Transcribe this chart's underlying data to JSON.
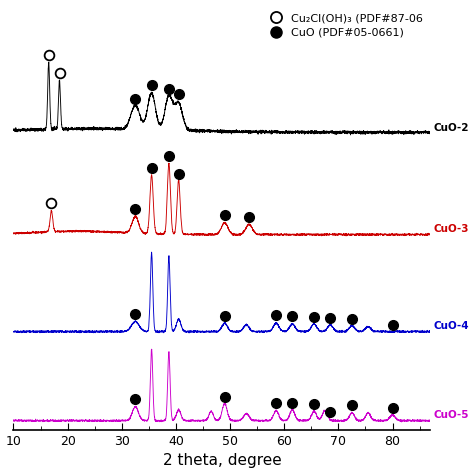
{
  "xlabel": "2 theta, degree",
  "xlim": [
    10,
    87
  ],
  "x_ticks": [
    10,
    20,
    30,
    40,
    50,
    60,
    70,
    80
  ],
  "curve_labels": [
    "CuO-2",
    "CuO-3",
    "CuO-4",
    "CuO-5"
  ],
  "curve_colors": [
    "#000000",
    "#cc0000",
    "#0000cc",
    "#cc00cc"
  ],
  "offsets": [
    0.73,
    0.48,
    0.24,
    0.02
  ],
  "scales": [
    0.18,
    0.18,
    0.2,
    0.18
  ],
  "legend_open_label": "Cu₂Cl(OH)₃ (PDF#87-06",
  "legend_filled_label": "CuO (PDF#05-0661)",
  "open_circle_positions": {
    "0": [
      16.5,
      18.5
    ],
    "1": [
      17.0
    ],
    "2": [],
    "3": []
  },
  "filled_circle_positions": {
    "0": [
      32.5,
      35.5,
      38.7,
      40.5
    ],
    "1": [
      32.5,
      35.5,
      38.7,
      40.5,
      49.0,
      53.5
    ],
    "2": [
      32.5,
      49.0,
      58.5,
      61.5,
      65.5,
      68.5,
      72.5,
      80.0
    ],
    "3": [
      32.5,
      49.0,
      58.5,
      61.5,
      65.5,
      68.5,
      72.5,
      80.0
    ]
  },
  "background_color": "#ffffff"
}
